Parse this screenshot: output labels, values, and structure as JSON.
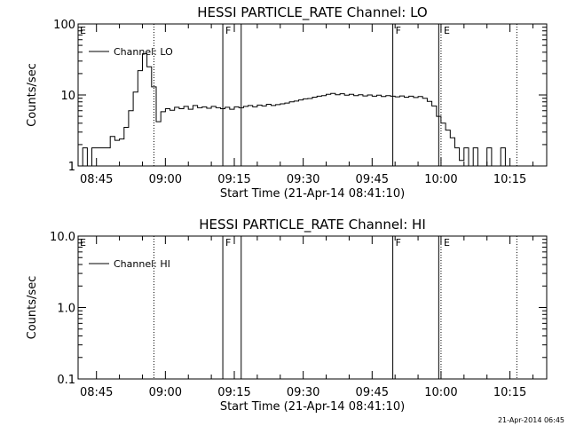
{
  "chart_data": [
    {
      "type": "line",
      "title": "HESSI PARTICLE_RATE Channel: LO",
      "xlabel": "Start Time (21-Apr-14 08:41:10)",
      "ylabel": "Counts/sec",
      "yscale": "log",
      "ylim": [
        1,
        100
      ],
      "ytick_values": [
        1,
        10,
        100
      ],
      "ytick_labels": [
        "1",
        "10",
        "100"
      ],
      "xlim": [
        "08:41",
        "10:23"
      ],
      "xtick_values": [
        "08:45",
        "09:00",
        "09:15",
        "09:30",
        "09:45",
        "10:00",
        "10:15"
      ],
      "xtick_labels": [
        "08:45",
        "09:00",
        "09:15",
        "09:30",
        "09:45",
        "10:00",
        "10:15"
      ],
      "legend": {
        "placement": "top-left",
        "entries": [
          "Channel: LO"
        ]
      },
      "vlines": [
        {
          "x": "08:57.5",
          "style": "dotted"
        },
        {
          "x": "09:12.5",
          "style": "solid",
          "label": "F"
        },
        {
          "x": "09:16.5",
          "style": "solid"
        },
        {
          "x": "09:49.5",
          "style": "solid",
          "label": "F"
        },
        {
          "x": "09:59.5",
          "style": "solid"
        },
        {
          "x": "10:00",
          "style": "dotted",
          "label": "E"
        },
        {
          "x": "10:16.5",
          "style": "dotted"
        }
      ],
      "edge_labels": [
        {
          "x": "08:41",
          "label": "E"
        }
      ],
      "series": [
        {
          "x": [
            "08:41",
            "08:42",
            "08:43",
            "08:44",
            "08:45",
            "08:46",
            "08:47",
            "08:48",
            "08:49",
            "08:50",
            "08:51",
            "08:52",
            "08:53",
            "08:54",
            "08:55",
            "08:56",
            "08:57",
            "08:58",
            "08:59",
            "09:00",
            "09:01",
            "09:02",
            "09:03",
            "09:04",
            "09:05",
            "09:06",
            "09:07",
            "09:08",
            "09:09",
            "09:10",
            "09:11",
            "09:12",
            "09:13",
            "09:14",
            "09:15",
            "09:16",
            "09:17",
            "09:18",
            "09:19",
            "09:20",
            "09:21",
            "09:22",
            "09:23",
            "09:24",
            "09:25",
            "09:26",
            "09:27",
            "09:28",
            "09:29",
            "09:30",
            "09:31",
            "09:32",
            "09:33",
            "09:34",
            "09:35",
            "09:36",
            "09:37",
            "09:38",
            "09:39",
            "09:40",
            "09:41",
            "09:42",
            "09:43",
            "09:44",
            "09:45",
            "09:46",
            "09:47",
            "09:48",
            "09:49",
            "09:50",
            "09:51",
            "09:52",
            "09:53",
            "09:54",
            "09:55",
            "09:56",
            "09:57",
            "09:58",
            "09:59",
            "10:00",
            "10:01",
            "10:02",
            "10:03",
            "10:04",
            "10:05",
            "10:06",
            "10:07",
            "10:08",
            "10:09",
            "10:10",
            "10:11",
            "10:12",
            "10:13",
            "10:14",
            "10:15",
            "10:16"
          ],
          "values": [
            1,
            1.8,
            1,
            1.8,
            1.8,
            1.8,
            1.8,
            2.6,
            2.3,
            2.4,
            3.5,
            6,
            11,
            22,
            38,
            25,
            13,
            4.2,
            5.8,
            6.4,
            6.1,
            6.7,
            6.4,
            6.9,
            6.3,
            7.1,
            6.6,
            6.8,
            6.5,
            6.9,
            6.6,
            6.4,
            6.7,
            6.3,
            6.8,
            6.6,
            6.9,
            7.1,
            6.8,
            7.2,
            7.0,
            7.4,
            7.1,
            7.3,
            7.5,
            7.7,
            8.0,
            8.2,
            8.5,
            8.8,
            8.9,
            9.3,
            9.6,
            9.8,
            10.2,
            10.5,
            10.1,
            10.4,
            9.9,
            10.2,
            9.8,
            10.1,
            9.7,
            10.0,
            9.6,
            9.9,
            9.5,
            9.8,
            9.6,
            9.4,
            9.7,
            9.3,
            9.6,
            9.2,
            9.5,
            9.0,
            8.1,
            7.0,
            5.0,
            4.0,
            3.2,
            2.5,
            1.8,
            1.2,
            1.8,
            1,
            1.8,
            1,
            1,
            1.8,
            1,
            1,
            1.8,
            1,
            1,
            1
          ]
        }
      ]
    },
    {
      "type": "line",
      "title": "HESSI PARTICLE_RATE Channel: HI",
      "xlabel": "Start Time (21-Apr-14 08:41:10)",
      "ylabel": "Counts/sec",
      "yscale": "log",
      "ylim": [
        0.1,
        10
      ],
      "ytick_values": [
        0.1,
        1,
        10
      ],
      "ytick_labels": [
        "0.1",
        "1.0",
        "10.0"
      ],
      "xlim": [
        "08:41",
        "10:23"
      ],
      "xtick_values": [
        "08:45",
        "09:00",
        "09:15",
        "09:30",
        "09:45",
        "10:00",
        "10:15"
      ],
      "xtick_labels": [
        "08:45",
        "09:00",
        "09:15",
        "09:30",
        "09:45",
        "10:00",
        "10:15"
      ],
      "legend": {
        "placement": "top-left",
        "entries": [
          "Channel: HI"
        ]
      },
      "vlines": [
        {
          "x": "08:57.5",
          "style": "dotted"
        },
        {
          "x": "09:12.5",
          "style": "solid",
          "label": "F"
        },
        {
          "x": "09:16.5",
          "style": "solid"
        },
        {
          "x": "09:49.5",
          "style": "solid",
          "label": "F"
        },
        {
          "x": "09:59.5",
          "style": "solid"
        },
        {
          "x": "10:00",
          "style": "dotted",
          "label": "E"
        },
        {
          "x": "10:16.5",
          "style": "dotted"
        }
      ],
      "edge_labels": [
        {
          "x": "08:41",
          "label": "E"
        }
      ],
      "series": [
        {
          "x": [],
          "values": []
        }
      ]
    }
  ],
  "footer": "21-Apr-2014 06:45"
}
